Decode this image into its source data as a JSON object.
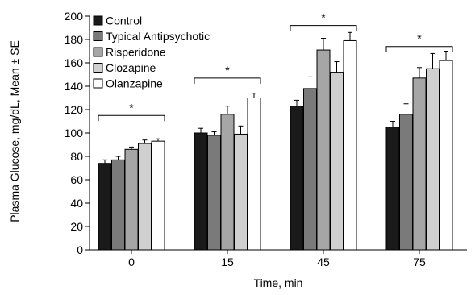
{
  "chart_data": {
    "type": "bar",
    "xlabel": "Time, min",
    "ylabel": "Plasma Glucose, mg/dL, Mean ± SE",
    "ylim": [
      0,
      200
    ],
    "yticks": [
      "0",
      "20",
      "40",
      "60",
      "80",
      "100",
      "120",
      "140",
      "160",
      "180",
      "200"
    ],
    "categories": [
      "0",
      "15",
      "45",
      "75"
    ],
    "legend_position": "top-left",
    "significance_marker": "*",
    "series": [
      {
        "name": "Control",
        "color": "#1a1a1a",
        "values": [
          74,
          100,
          123,
          105
        ],
        "errors": [
          3,
          4,
          5,
          5
        ]
      },
      {
        "name": "Typical Antipsychotic",
        "color": "#7a7a7a",
        "values": [
          77,
          98,
          138,
          116
        ],
        "errors": [
          3,
          3,
          10,
          9
        ]
      },
      {
        "name": "Risperidone",
        "color": "#a6a6a6",
        "values": [
          86,
          116,
          171,
          147
        ],
        "errors": [
          2,
          7,
          10,
          9
        ]
      },
      {
        "name": "Clozapine",
        "color": "#d0d0d0",
        "values": [
          91,
          99,
          152,
          155
        ],
        "errors": [
          3,
          7,
          9,
          13
        ]
      },
      {
        "name": "Olanzapine",
        "color": "#ffffff",
        "values": [
          93,
          130,
          179,
          162
        ],
        "errors": [
          2,
          4,
          7,
          8
        ]
      }
    ],
    "significance_brackets": [
      {
        "category": "0",
        "y": 115
      },
      {
        "category": "15",
        "y": 147
      },
      {
        "category": "45",
        "y": 192
      },
      {
        "category": "75",
        "y": 174
      }
    ]
  }
}
